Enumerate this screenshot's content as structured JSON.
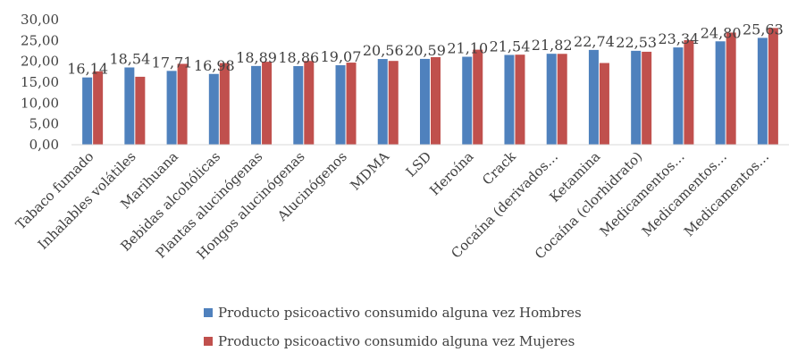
{
  "chart_data": {
    "type": "bar",
    "categories": [
      "Tabaco fumado",
      "Inhalables volátiles",
      "Marihuana",
      "Bebidas alcohólicas",
      "Plantas alucinógenas",
      "Hongos alucinógenas",
      "Alucinógenos",
      "MDMA",
      "LSD",
      "Heroína",
      "Crack",
      "Cocaína (derivados…",
      "Ketamina",
      "Cocaína (clorhidrato)",
      "Medicamentos…",
      "Medicamentos…",
      "Medicamentos…"
    ],
    "series": [
      {
        "name": "Producto psicoactivo consumido alguna vez Hombres",
        "values": [
          16.14,
          18.54,
          17.71,
          16.98,
          18.89,
          18.86,
          19.07,
          20.56,
          20.59,
          21.1,
          21.54,
          21.82,
          22.74,
          22.53,
          23.34,
          24.8,
          25.63
        ],
        "color": "#4f81bd"
      },
      {
        "name": "Producto psicoactivo consumido alguna vez Mujeres",
        "values": [
          17.6,
          16.3,
          19.4,
          19.6,
          19.9,
          20.1,
          19.7,
          20.1,
          21.0,
          22.8,
          21.6,
          21.8,
          19.6,
          22.3,
          25.1,
          26.9,
          28.0
        ],
        "color": "#c0504d"
      }
    ],
    "data_labels": [
      "16,14",
      "18,54",
      "17,71",
      "16,98",
      "18,89",
      "18,86",
      "19,07",
      "20,56",
      "20,59",
      "21,10",
      "21,54",
      "21,82",
      "22,74",
      "22,53",
      "23,34",
      "24,80",
      "25,63"
    ],
    "yticks": [
      "0,00",
      "5,00",
      "10,00",
      "15,00",
      "20,00",
      "25,00",
      "30,00"
    ],
    "ylim": [
      0,
      30
    ],
    "grid": false,
    "legend_position": "bottom",
    "title": "",
    "xlabel": "",
    "ylabel": ""
  }
}
